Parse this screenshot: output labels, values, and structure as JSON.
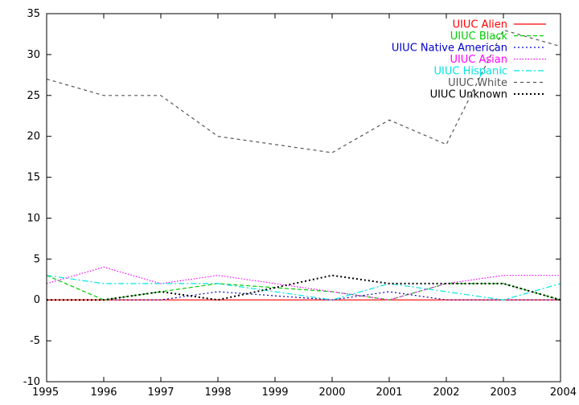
{
  "chart_data": {
    "type": "line",
    "title": "",
    "xlabel": "",
    "ylabel": "",
    "xlim": [
      1995,
      2004
    ],
    "ylim": [
      -10,
      35
    ],
    "grid": false,
    "legend_position": "top-right",
    "x": [
      1995,
      1996,
      1997,
      1998,
      1999,
      2000,
      2001,
      2002,
      2003,
      2004
    ],
    "x_ticks": [
      "1995",
      "1996",
      "1997",
      "1998",
      "1999",
      "2000",
      "2001",
      "2002",
      "2003",
      "2004"
    ],
    "y_ticks": [
      "-10",
      "-5",
      "0",
      "5",
      "10",
      "15",
      "20",
      "25",
      "30",
      "35"
    ],
    "series": [
      {
        "name": "UIUC Alien",
        "color": "#ff0000",
        "dash": "solid",
        "values": [
          0,
          0,
          0,
          0,
          0,
          0,
          0,
          0,
          0,
          0
        ]
      },
      {
        "name": "UIUC Black",
        "color": "#00cc00",
        "dash": "dash",
        "values": [
          3,
          0,
          1,
          2,
          1.5,
          1,
          0,
          2,
          2,
          0
        ]
      },
      {
        "name": "UIUC Native American",
        "color": "#0000cc",
        "dash": "dot-short",
        "values": [
          0,
          0,
          0,
          1,
          0.5,
          0,
          1,
          0,
          0,
          0
        ]
      },
      {
        "name": "UIUC Asian",
        "color": "#ff00ff",
        "dash": "dot",
        "values": [
          2,
          4,
          2,
          3,
          2,
          1,
          0,
          2,
          3,
          3
        ]
      },
      {
        "name": "UIUC Hispanic",
        "color": "#00e5e5",
        "dash": "dashdot",
        "values": [
          3,
          2,
          2,
          2,
          1,
          0,
          2,
          1,
          0,
          2
        ]
      },
      {
        "name": "UIUC White",
        "color": "#555555",
        "dash": "longdash",
        "values": [
          27,
          25,
          25,
          20,
          19,
          18,
          22,
          19,
          33,
          31
        ]
      },
      {
        "name": "UIUC Unknown",
        "color": "#000000",
        "dash": "bolddot",
        "values": [
          0,
          0,
          1,
          0,
          1.5,
          3,
          2,
          2,
          2,
          0
        ]
      }
    ]
  }
}
